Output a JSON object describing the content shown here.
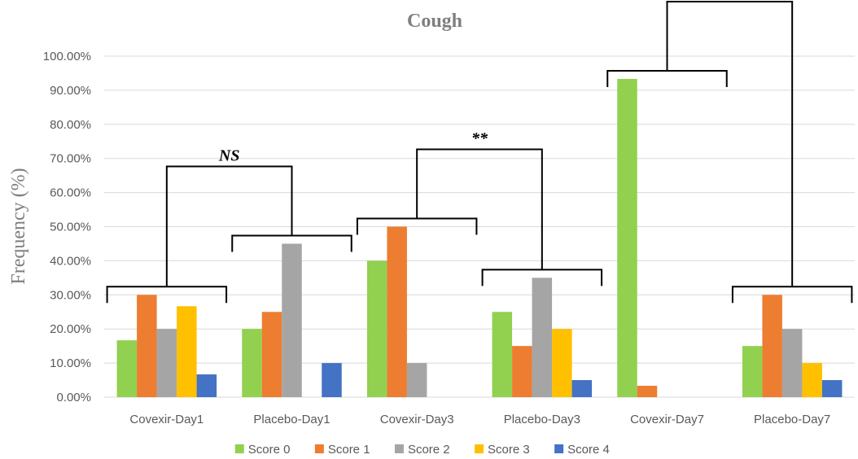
{
  "chart_data": {
    "type": "bar",
    "title": "Cough",
    "ylabel": "Frequency (%)",
    "xlabel": "",
    "ylim": [
      0,
      100
    ],
    "y_ticks": [
      "0.00%",
      "10.00%",
      "20.00%",
      "30.00%",
      "40.00%",
      "50.00%",
      "60.00%",
      "70.00%",
      "80.00%",
      "90.00%",
      "100.00%"
    ],
    "y_tick_values": [
      0,
      10,
      20,
      30,
      40,
      50,
      60,
      70,
      80,
      90,
      100
    ],
    "grid": true,
    "legend_position": "bottom",
    "categories": [
      "Covexir-Day1",
      "Placebo-Day1",
      "Covexir-Day3",
      "Placebo-Day3",
      "Covexir-Day7",
      "Placebo-Day7"
    ],
    "series": [
      {
        "name": "Score 0",
        "color": "#92d050",
        "values": [
          16.67,
          20,
          40,
          25,
          93.33,
          15
        ]
      },
      {
        "name": "Score 1",
        "color": "#ed7d31",
        "values": [
          30,
          25,
          50,
          15,
          3.33,
          30
        ]
      },
      {
        "name": "Score 2",
        "color": "#a5a5a5",
        "values": [
          20,
          45,
          10,
          35,
          0,
          20
        ]
      },
      {
        "name": "Score 3",
        "color": "#ffc000",
        "values": [
          26.67,
          0,
          0,
          20,
          0,
          10
        ]
      },
      {
        "name": "Score 4",
        "color": "#4472c4",
        "values": [
          6.67,
          10,
          0,
          5,
          0,
          5
        ]
      }
    ],
    "comparisons": [
      {
        "label": "NS",
        "groups": [
          0,
          1
        ]
      },
      {
        "label": "**",
        "groups": [
          2,
          3
        ]
      },
      {
        "label": "***",
        "groups": [
          4,
          5
        ]
      }
    ]
  }
}
